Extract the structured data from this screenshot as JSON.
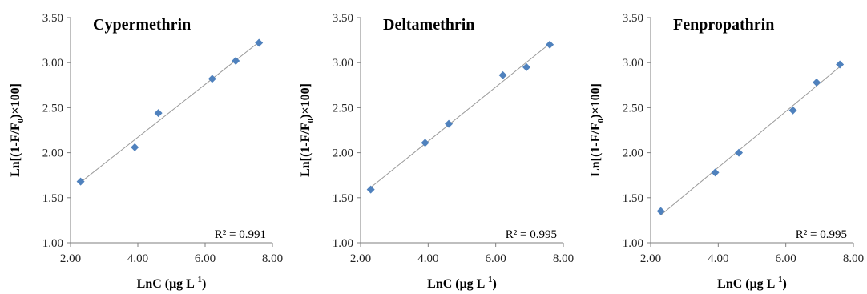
{
  "chart_data": [
    {
      "type": "scatter",
      "title": "Cypermethrin",
      "xlabel": "LnC (μg L",
      "xlabel_sup": "-1",
      "xlabel_end": ")",
      "ylabel": "Ln[(1-F/F",
      "ylabel_sub": "0",
      "ylabel_end": ")×100]",
      "xlim": [
        2.0,
        8.0
      ],
      "ylim": [
        1.0,
        3.5
      ],
      "x_ticks": [
        "2.00",
        "4.00",
        "6.00",
        "8.00"
      ],
      "y_ticks": [
        "1.00",
        "1.50",
        "2.00",
        "2.50",
        "3.00",
        "3.50"
      ],
      "grid": false,
      "trendline": true,
      "annotation": "R² = 0.991",
      "marker_color": "#4f81bd",
      "x": [
        2.3,
        3.91,
        4.61,
        6.21,
        6.91,
        7.6
      ],
      "y": [
        1.68,
        2.06,
        2.44,
        2.82,
        3.02,
        3.22
      ]
    },
    {
      "type": "scatter",
      "title": "Deltamethrin",
      "xlabel": "LnC (μg L",
      "xlabel_sup": "-1",
      "xlabel_end": ")",
      "ylabel": "Ln[(1-F/F",
      "ylabel_sub": "0",
      "ylabel_end": ")×100]",
      "xlim": [
        2.0,
        8.0
      ],
      "ylim": [
        1.0,
        3.5
      ],
      "x_ticks": [
        "2.00",
        "4.00",
        "6.00",
        "8.00"
      ],
      "y_ticks": [
        "1.00",
        "1.50",
        "2.00",
        "2.50",
        "3.00",
        "3.50"
      ],
      "grid": false,
      "trendline": true,
      "annotation": "R² = 0.995",
      "marker_color": "#4f81bd",
      "x": [
        2.3,
        3.91,
        4.61,
        6.21,
        6.91,
        7.6
      ],
      "y": [
        1.59,
        2.11,
        2.32,
        2.86,
        2.95,
        3.2
      ]
    },
    {
      "type": "scatter",
      "title": "Fenpropathrin",
      "xlabel": "LnC (μg L",
      "xlabel_sup": "-1",
      "xlabel_end": ")",
      "ylabel": "Ln[(1-F/F",
      "ylabel_sub": "0",
      "ylabel_end": ")×100]",
      "xlim": [
        2.0,
        8.0
      ],
      "ylim": [
        1.0,
        3.5
      ],
      "x_ticks": [
        "2.00",
        "4.00",
        "6.00",
        "8.00"
      ],
      "y_ticks": [
        "1.00",
        "1.50",
        "2.00",
        "2.50",
        "3.00",
        "3.50"
      ],
      "grid": false,
      "trendline": true,
      "annotation": "R² = 0.995",
      "marker_color": "#4f81bd",
      "x": [
        2.3,
        3.91,
        4.61,
        6.21,
        6.91,
        7.6
      ],
      "y": [
        1.35,
        1.78,
        2.0,
        2.47,
        2.78,
        2.98
      ]
    }
  ]
}
